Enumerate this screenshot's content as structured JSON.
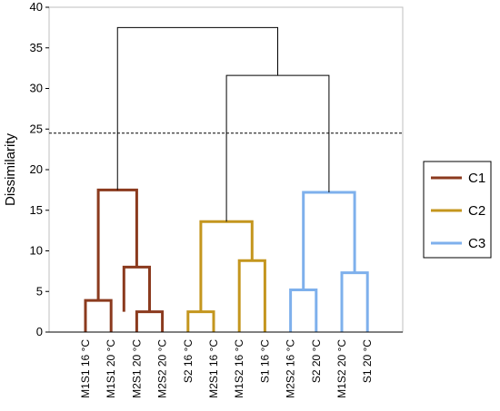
{
  "chart_data": {
    "type": "dendrogram",
    "ylabel": "Dissimilarity",
    "ylim": [
      0,
      40
    ],
    "yticks": [
      0,
      5,
      10,
      15,
      20,
      25,
      30,
      35,
      40
    ],
    "truncation_line": 24.5,
    "grid": false,
    "legend_position": "right",
    "leaves": [
      "M1S1 16 °C",
      "M1S1 20 °C",
      "M2S1 20 °C",
      "M2S2 20 °C",
      "S2 16 °C",
      "M2S1 16 °C",
      "M1S2 16 °C",
      "S1 16 °C",
      "M2S2 16 °C",
      "S2 20 °C",
      "M1S2 20 °C",
      "S1 20 °C"
    ],
    "clusters": [
      {
        "name": "C1",
        "color": "#8B3A1E"
      },
      {
        "name": "C2",
        "color": "#C4961E"
      },
      {
        "name": "C3",
        "color": "#7EB0EC"
      }
    ],
    "merges": [
      {
        "left": 0,
        "right": 1,
        "height": 3.9,
        "cluster": 0
      },
      {
        "left": 2,
        "right": 3,
        "height": 2.5,
        "cluster": 0
      },
      {
        "left": "n1",
        "right": 1.5,
        "height": 8.0,
        "cluster": 0,
        "leftIsLeaf": false
      },
      {
        "left": 4,
        "right": 5,
        "height": 2.5,
        "cluster": 1
      },
      {
        "left": 6,
        "right": 7,
        "height": 8.8,
        "cluster": 1
      },
      {
        "left": 8,
        "right": 9,
        "height": 5.2,
        "cluster": 2
      },
      {
        "left": 10,
        "right": 11,
        "height": 7.3,
        "cluster": 2
      },
      {
        "top_c1": 17.5,
        "top_c2": 13.6,
        "top_c3": 17.2,
        "c2c3": 31.6,
        "root": 37.5
      }
    ]
  }
}
